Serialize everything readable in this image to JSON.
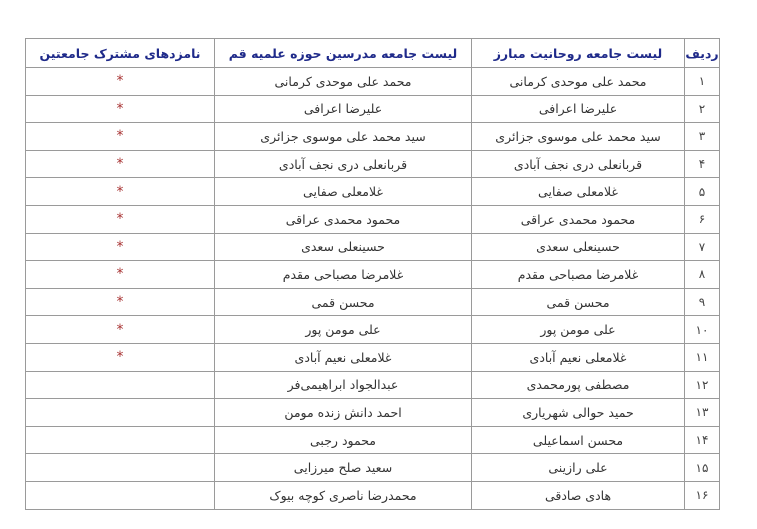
{
  "table": {
    "headers": [
      "ردیف",
      "لیست جامعه روحانیت مبارز",
      "لیست جامعه مدرسین حوزه علمیه قم",
      "نامزدهای مشترک جامعتین"
    ],
    "rows": [
      {
        "num": "۱",
        "rohaniyat": "محمد علی موحدی کرمانی",
        "modarresin": "محمد علی موحدی کرمانی",
        "common": "*"
      },
      {
        "num": "۲",
        "rohaniyat": "علیرضا اعرافی",
        "modarresin": "علیرضا اعرافی",
        "common": "*"
      },
      {
        "num": "۳",
        "rohaniyat": "سید محمد علی موسوی جزائری",
        "modarresin": "سید محمد علی موسوی جزائری",
        "common": "*"
      },
      {
        "num": "۴",
        "rohaniyat": "قربانعلی دری نجف آبادی",
        "modarresin": "قربانعلی دری نجف آبادی",
        "common": "*"
      },
      {
        "num": "۵",
        "rohaniyat": "غلامعلی صفایی",
        "modarresin": "غلامعلی صفایی",
        "common": "*"
      },
      {
        "num": "۶",
        "rohaniyat": "محمود محمدی عراقی",
        "modarresin": "محمود محمدی عراقی",
        "common": "*"
      },
      {
        "num": "۷",
        "rohaniyat": "حسینعلی سعدی",
        "modarresin": "حسینعلی سعدی",
        "common": "*"
      },
      {
        "num": "۸",
        "rohaniyat": "غلامرضا مصباحی مقدم",
        "modarresin": "غلامرضا مصباحی مقدم",
        "common": "*"
      },
      {
        "num": "۹",
        "rohaniyat": "محسن قمی",
        "modarresin": "محسن قمی",
        "common": "*"
      },
      {
        "num": "۱۰",
        "rohaniyat": "علی مومن پور",
        "modarresin": "علی مومن پور",
        "common": "*"
      },
      {
        "num": "۱۱",
        "rohaniyat": "غلامعلی نعیم آبادی",
        "modarresin": "غلامعلی نعیم آبادی",
        "common": "*"
      },
      {
        "num": "۱۲",
        "rohaniyat": "مصطفی پورمحمدی",
        "modarresin": "عبدالجواد ابراهیمی‌فر",
        "common": ""
      },
      {
        "num": "۱۳",
        "rohaniyat": "حمید حوالی شهریاری",
        "modarresin": "احمد دانش زنده مومن",
        "common": ""
      },
      {
        "num": "۱۴",
        "rohaniyat": "محسن اسماعیلی",
        "modarresin": "محمود رجبی",
        "common": ""
      },
      {
        "num": "۱۵",
        "rohaniyat": "علی رازینی",
        "modarresin": "سعید صلح میرزایی",
        "common": ""
      },
      {
        "num": "۱۶",
        "rohaniyat": "هادی صادقی",
        "modarresin": "محمدرضا ناصری کوچه بیوک",
        "common": ""
      }
    ]
  },
  "colors": {
    "header_text": "#1f2a8a",
    "star": "#a83232",
    "border": "#9a9a9a"
  }
}
